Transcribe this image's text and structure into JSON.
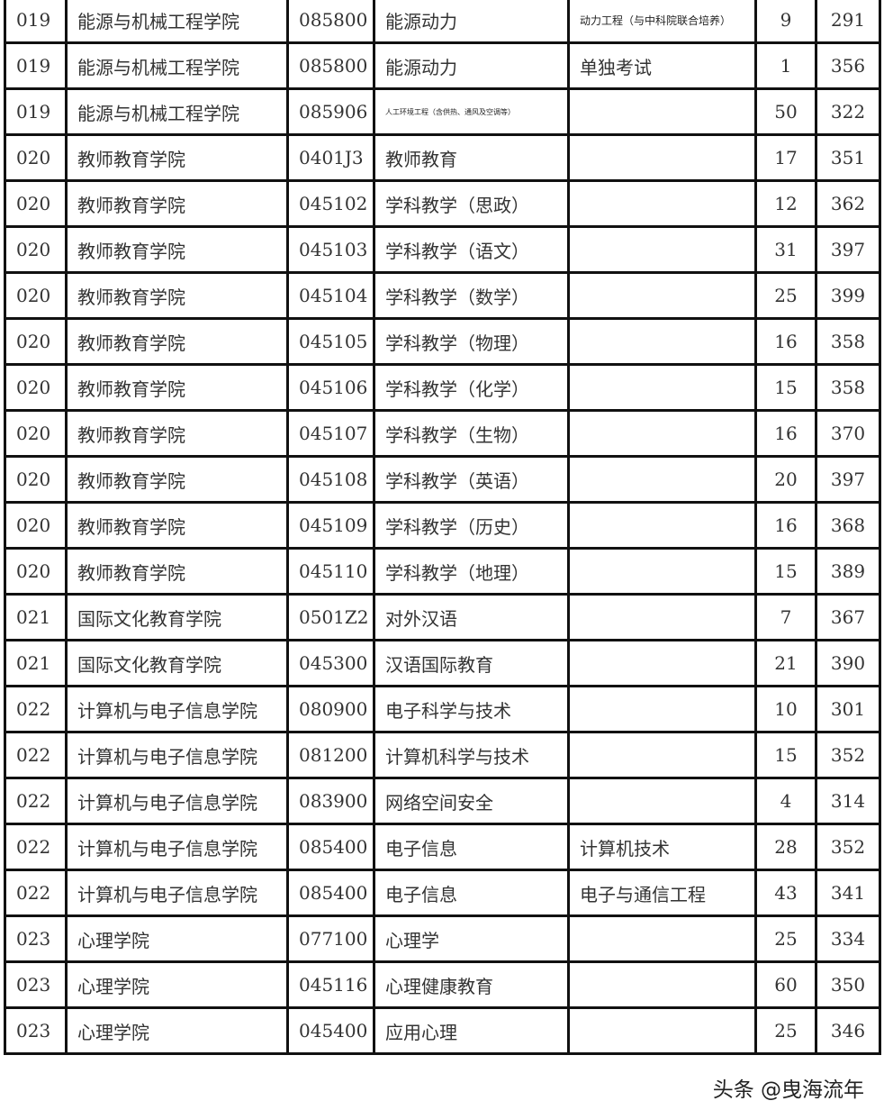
{
  "rows": [
    [
      "019",
      "能源与机械工程学院",
      "085800",
      "能源动力",
      "动力工程（与中科院联合培养）",
      "9",
      "291"
    ],
    [
      "019",
      "能源与机械工程学院",
      "085800",
      "能源动力",
      "单独考试",
      "1",
      "356"
    ],
    [
      "019",
      "能源与机械工程学院",
      "085906",
      "人工环境工程（含供热、通风及空调等）",
      "",
      "50",
      "322"
    ],
    [
      "020",
      "教师教育学院",
      "0401J3",
      "教师教育",
      "",
      "17",
      "351"
    ],
    [
      "020",
      "教师教育学院",
      "045102",
      "学科教学（思政）",
      "",
      "12",
      "362"
    ],
    [
      "020",
      "教师教育学院",
      "045103",
      "学科教学（语文）",
      "",
      "31",
      "397"
    ],
    [
      "020",
      "教师教育学院",
      "045104",
      "学科教学（数学）",
      "",
      "25",
      "399"
    ],
    [
      "020",
      "教师教育学院",
      "045105",
      "学科教学（物理）",
      "",
      "16",
      "358"
    ],
    [
      "020",
      "教师教育学院",
      "045106",
      "学科教学（化学）",
      "",
      "15",
      "358"
    ],
    [
      "020",
      "教师教育学院",
      "045107",
      "学科教学（生物）",
      "",
      "16",
      "370"
    ],
    [
      "020",
      "教师教育学院",
      "045108",
      "学科教学（英语）",
      "",
      "20",
      "397"
    ],
    [
      "020",
      "教师教育学院",
      "045109",
      "学科教学（历史）",
      "",
      "16",
      "368"
    ],
    [
      "020",
      "教师教育学院",
      "045110",
      "学科教学（地理）",
      "",
      "15",
      "389"
    ],
    [
      "021",
      "国际文化教育学院",
      "0501Z2",
      "对外汉语",
      "",
      "7",
      "367"
    ],
    [
      "021",
      "国际文化教育学院",
      "045300",
      "汉语国际教育",
      "",
      "21",
      "390"
    ],
    [
      "022",
      "计算机与电子信息学院",
      "080900",
      "电子科学与技术",
      "",
      "10",
      "301"
    ],
    [
      "022",
      "计算机与电子信息学院",
      "081200",
      "计算机科学与技术",
      "",
      "15",
      "352"
    ],
    [
      "022",
      "计算机与电子信息学院",
      "083900",
      "网络空间安全",
      "",
      "4",
      "314"
    ],
    [
      "022",
      "计算机与电子信息学院",
      "085400",
      "电子信息",
      "计算机技术",
      "28",
      "352"
    ],
    [
      "022",
      "计算机与电子信息学院",
      "085400",
      "电子信息",
      "电子与通信工程",
      "43",
      "341"
    ],
    [
      "023",
      "心理学院",
      "077100",
      "心理学",
      "",
      "25",
      "334"
    ],
    [
      "023",
      "心理学院",
      "045116",
      "心理健康教育",
      "",
      "60",
      "350"
    ],
    [
      "023",
      "心理学院",
      "045400",
      "应用心理",
      "",
      "25",
      "346"
    ]
  ],
  "watermark": "头条 @曳海流年"
}
